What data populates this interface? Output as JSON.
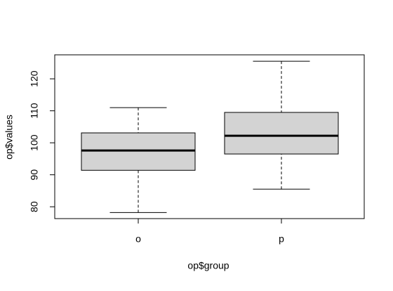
{
  "chart_data": {
    "type": "box",
    "x_label": "op$group",
    "y_label": "op$values",
    "categories": [
      "o",
      "p"
    ],
    "min": [
      78.2,
      85.5
    ],
    "q1": [
      91.4,
      96.5
    ],
    "median": [
      97.6,
      102.2
    ],
    "q3": [
      103.1,
      109.5
    ],
    "max": [
      111.0,
      125.5
    ],
    "color": "#d3d3d3",
    "ylim": [
      76.3,
      127.5
    ],
    "yticks": [
      80,
      90,
      100,
      110,
      120
    ]
  }
}
